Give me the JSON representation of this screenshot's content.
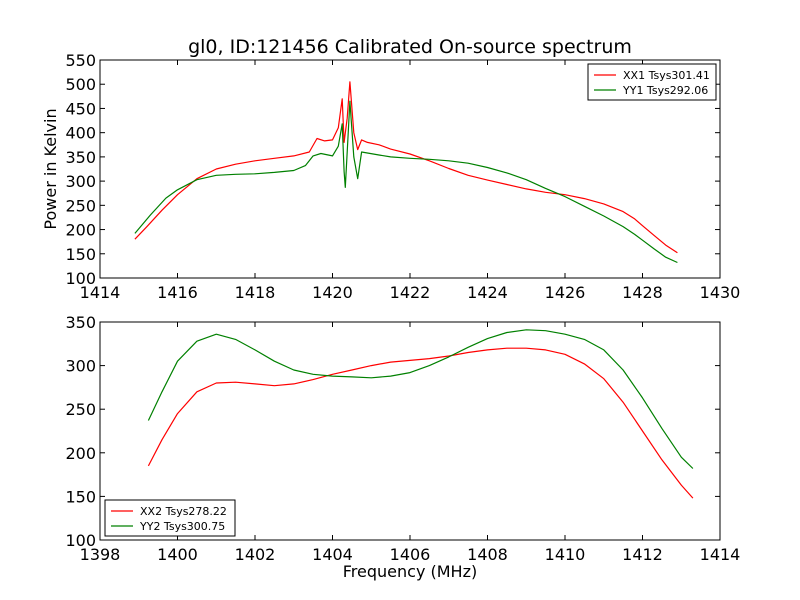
{
  "chart_data": [
    {
      "type": "line",
      "title": "gl0, ID:121456 Calibrated On-source spectrum",
      "xlabel": "",
      "ylabel": "Power in Kelvin",
      "xlim": [
        1414,
        1430
      ],
      "ylim": [
        100,
        550
      ],
      "xticks": [
        1414,
        1416,
        1418,
        1420,
        1422,
        1424,
        1426,
        1428,
        1430
      ],
      "yticks": [
        100,
        150,
        200,
        250,
        300,
        350,
        400,
        450,
        500,
        550
      ],
      "grid": false,
      "legend_position": "top-right",
      "series": [
        {
          "name": "XX1 Tsys301.41",
          "color": "#ff0000",
          "x": [
            1414.9,
            1415.2,
            1415.6,
            1416.0,
            1416.5,
            1417.0,
            1417.5,
            1418.0,
            1418.5,
            1419.0,
            1419.4,
            1419.6,
            1419.8,
            1420.0,
            1420.15,
            1420.25,
            1420.3,
            1420.38,
            1420.45,
            1420.55,
            1420.65,
            1420.75,
            1420.9,
            1421.2,
            1421.5,
            1422.0,
            1422.5,
            1423.0,
            1423.5,
            1424.0,
            1424.5,
            1425.0,
            1425.5,
            1426.0,
            1426.5,
            1427.0,
            1427.5,
            1427.8,
            1428.0,
            1428.3,
            1428.6,
            1428.9
          ],
          "y": [
            180,
            205,
            240,
            272,
            305,
            325,
            335,
            342,
            347,
            352,
            360,
            388,
            383,
            385,
            410,
            470,
            380,
            430,
            505,
            400,
            365,
            385,
            380,
            375,
            366,
            356,
            342,
            326,
            312,
            302,
            293,
            284,
            277,
            272,
            264,
            253,
            237,
            222,
            208,
            188,
            168,
            152
          ]
        },
        {
          "name": "YY1 Tsys292.06",
          "color": "#008000",
          "x": [
            1414.9,
            1415.3,
            1415.7,
            1416.0,
            1416.5,
            1417.0,
            1417.5,
            1418.0,
            1418.5,
            1419.0,
            1419.3,
            1419.5,
            1419.7,
            1420.0,
            1420.15,
            1420.25,
            1420.3,
            1420.33,
            1420.38,
            1420.45,
            1420.55,
            1420.65,
            1420.75,
            1420.9,
            1421.2,
            1421.5,
            1422.0,
            1422.5,
            1423.0,
            1423.5,
            1424.0,
            1424.5,
            1425.0,
            1425.5,
            1426.0,
            1426.5,
            1427.0,
            1427.5,
            1427.8,
            1428.0,
            1428.3,
            1428.6,
            1428.9
          ],
          "y": [
            192,
            230,
            265,
            282,
            303,
            312,
            314,
            315,
            318,
            322,
            332,
            352,
            357,
            352,
            372,
            418,
            320,
            287,
            360,
            465,
            350,
            305,
            360,
            358,
            354,
            350,
            347,
            345,
            342,
            337,
            328,
            317,
            303,
            285,
            268,
            248,
            228,
            206,
            190,
            178,
            160,
            143,
            132
          ]
        }
      ]
    },
    {
      "type": "line",
      "title": "",
      "xlabel": "Frequency (MHz)",
      "ylabel": "",
      "xlim": [
        1398,
        1414
      ],
      "ylim": [
        100,
        350
      ],
      "xticks": [
        1398,
        1400,
        1402,
        1404,
        1406,
        1408,
        1410,
        1412,
        1414
      ],
      "yticks": [
        100,
        150,
        200,
        250,
        300,
        350
      ],
      "grid": false,
      "legend_position": "bottom-left",
      "series": [
        {
          "name": "XX2 Tsys278.22",
          "color": "#ff0000",
          "x": [
            1399.25,
            1399.6,
            1400.0,
            1400.5,
            1401.0,
            1401.5,
            1402.0,
            1402.5,
            1403.0,
            1403.5,
            1404.0,
            1404.5,
            1405.0,
            1405.5,
            1406.0,
            1406.5,
            1407.0,
            1407.5,
            1408.0,
            1408.5,
            1409.0,
            1409.5,
            1410.0,
            1410.5,
            1411.0,
            1411.5,
            1412.0,
            1412.5,
            1413.0,
            1413.3
          ],
          "y": [
            185,
            215,
            245,
            270,
            280,
            281,
            279,
            277,
            279,
            284,
            290,
            295,
            300,
            304,
            306,
            308,
            311,
            315,
            318,
            320,
            320,
            318,
            313,
            302,
            285,
            258,
            225,
            192,
            163,
            148
          ]
        },
        {
          "name": "YY2 Tsys300.75",
          "color": "#008000",
          "x": [
            1399.25,
            1399.6,
            1400.0,
            1400.5,
            1401.0,
            1401.5,
            1402.0,
            1402.5,
            1403.0,
            1403.5,
            1404.0,
            1404.5,
            1405.0,
            1405.5,
            1406.0,
            1406.5,
            1407.0,
            1407.5,
            1408.0,
            1408.5,
            1409.0,
            1409.5,
            1410.0,
            1410.5,
            1411.0,
            1411.5,
            1412.0,
            1412.5,
            1413.0,
            1413.3
          ],
          "y": [
            237,
            270,
            305,
            328,
            336,
            330,
            318,
            305,
            295,
            290,
            288,
            287,
            286,
            288,
            292,
            300,
            310,
            321,
            331,
            338,
            341,
            340,
            336,
            330,
            318,
            295,
            263,
            228,
            195,
            182
          ]
        }
      ]
    }
  ]
}
